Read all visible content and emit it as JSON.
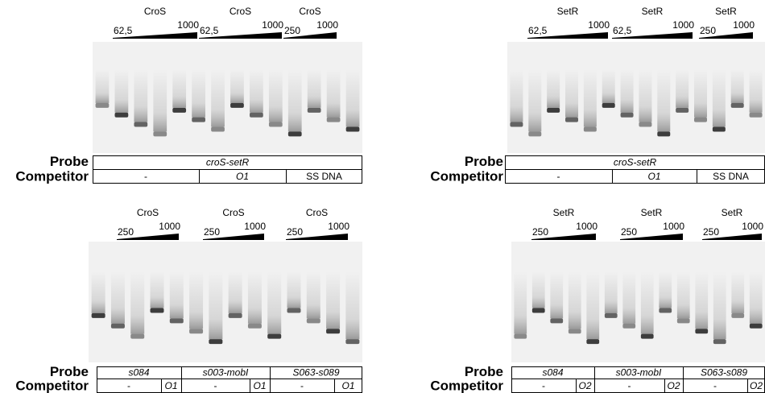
{
  "panels": [
    {
      "row_labels": {
        "probe": "Probe",
        "competitor": "Competitor"
      },
      "groups": [
        {
          "protein": "CroS",
          "low": "62,5",
          "high": "1000"
        },
        {
          "protein": "CroS",
          "low": "62,5",
          "high": "1000"
        },
        {
          "protein": "CroS",
          "low": "250",
          "high": "1000"
        }
      ],
      "probe": [
        "croS-setR"
      ],
      "competitor": [
        "-",
        "O1",
        "SS DNA"
      ]
    },
    {
      "row_labels": {
        "probe": "Probe",
        "competitor": "Competitor"
      },
      "groups": [
        {
          "protein": "SetR",
          "low": "62,5",
          "high": "1000"
        },
        {
          "protein": "SetR",
          "low": "62,5",
          "high": "1000"
        },
        {
          "protein": "SetR",
          "low": "250",
          "high": "1000"
        }
      ],
      "probe": [
        "croS-setR"
      ],
      "competitor": [
        "-",
        "O1",
        "SS DNA"
      ]
    },
    {
      "row_labels": {
        "probe": "Probe",
        "competitor": "Competitor"
      },
      "groups": [
        {
          "protein": "CroS",
          "low": "250",
          "high": "1000"
        },
        {
          "protein": "CroS",
          "low": "250",
          "high": "1000"
        },
        {
          "protein": "CroS",
          "low": "250",
          "high": "1000"
        }
      ],
      "probe": [
        "s084",
        "s003-mobI",
        "S063-s089"
      ],
      "competitor": [
        "-",
        "O1",
        "-",
        "O1",
        "-",
        "O1"
      ]
    },
    {
      "row_labels": {
        "probe": "Probe",
        "competitor": "Competitor"
      },
      "groups": [
        {
          "protein": "SetR",
          "low": "250",
          "high": "1000"
        },
        {
          "protein": "SetR",
          "low": "250",
          "high": "1000"
        },
        {
          "protein": "SetR",
          "low": "250",
          "high": "1000"
        }
      ],
      "probe": [
        "s084",
        "s003-mobI",
        "S063-s089"
      ],
      "competitor": [
        "-",
        "O2",
        "-",
        "O2",
        "-",
        "O2"
      ]
    }
  ]
}
